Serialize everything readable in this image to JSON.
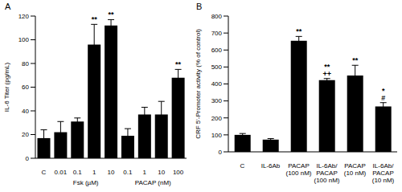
{
  "chart_data": [
    {
      "type": "bar",
      "title": "A",
      "y_label": "IL-6 Titer (pg/mL)",
      "categories": [
        "C",
        "0.01",
        "0.1",
        "1",
        "10",
        "0.1",
        "1",
        "10",
        "100"
      ],
      "values": [
        17,
        22,
        31,
        96,
        112,
        19,
        37,
        37,
        68
      ],
      "errors": [
        7,
        9,
        3,
        17,
        5,
        6,
        6,
        11,
        7
      ],
      "annotations": [
        null,
        null,
        null,
        "**",
        "**",
        null,
        null,
        null,
        "**"
      ],
      "group_labels": [
        {
          "label": "Fsk (µM)",
          "start": 1,
          "end": 4
        },
        {
          "label": "PACAP (nM)",
          "start": 5,
          "end": 8
        }
      ],
      "color": "#000000",
      "ylim": [
        0,
        120
      ],
      "yticks": [
        0,
        20,
        40,
        60,
        80,
        100,
        120
      ]
    },
    {
      "type": "bar",
      "title": "B",
      "y_label": "CRF 5'-Promoter activity (% of control)",
      "categories": [
        "C",
        "IL-6Ab",
        "PACAP\n(100 nM)",
        "IL-6Ab/\nPACAP\n(100 nM)",
        "PACAP\n(10 nM)",
        "IL-6Ab/\nPACAP\n(10 nM)"
      ],
      "values": [
        100,
        72,
        655,
        422,
        450,
        268
      ],
      "errors": [
        8,
        6,
        25,
        10,
        60,
        22
      ],
      "annotations": [
        null,
        null,
        "**",
        "**\n++",
        "**",
        "*\n#"
      ],
      "color": "#000000",
      "ylim": [
        0,
        800
      ],
      "yticks": [
        0,
        100,
        200,
        300,
        400,
        500,
        600,
        700,
        800
      ]
    }
  ]
}
